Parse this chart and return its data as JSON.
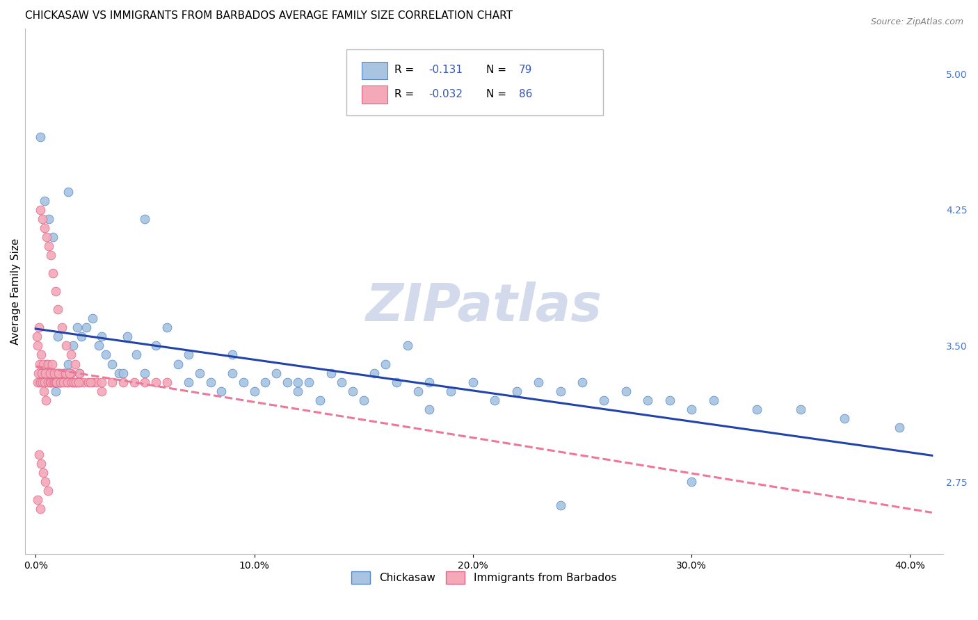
{
  "title": "CHICKASAW VS IMMIGRANTS FROM BARBADOS AVERAGE FAMILY SIZE CORRELATION CHART",
  "source": "Source: ZipAtlas.com",
  "ylabel": "Average Family Size",
  "xlabel_ticks": [
    "0.0%",
    "10.0%",
    "20.0%",
    "30.0%",
    "40.0%"
  ],
  "xlabel_vals": [
    0.0,
    10.0,
    20.0,
    30.0,
    40.0
  ],
  "ylabel_right_ticks": [
    2.75,
    3.5,
    4.25,
    5.0
  ],
  "ylim": [
    2.35,
    5.25
  ],
  "xlim": [
    -0.5,
    41.5
  ],
  "chickasaw_x": [
    0.15,
    0.3,
    0.5,
    0.7,
    0.9,
    1.1,
    1.3,
    1.5,
    1.7,
    1.9,
    2.1,
    2.3,
    2.6,
    2.9,
    3.2,
    3.5,
    3.8,
    4.2,
    4.6,
    5.0,
    5.5,
    6.0,
    6.5,
    7.0,
    7.5,
    8.0,
    8.5,
    9.0,
    9.5,
    10.0,
    10.5,
    11.0,
    11.5,
    12.0,
    12.5,
    13.0,
    13.5,
    14.0,
    14.5,
    15.0,
    15.5,
    16.0,
    16.5,
    17.0,
    17.5,
    18.0,
    19.0,
    20.0,
    21.0,
    22.0,
    23.0,
    24.0,
    25.0,
    26.0,
    27.0,
    28.0,
    29.0,
    30.0,
    31.0,
    33.0,
    35.0,
    37.0,
    39.5,
    0.2,
    0.4,
    0.6,
    0.8,
    1.0,
    1.5,
    2.0,
    3.0,
    4.0,
    5.0,
    7.0,
    9.0,
    12.0,
    18.0,
    24.0,
    30.0
  ],
  "chickasaw_y": [
    3.3,
    3.35,
    3.4,
    3.3,
    3.25,
    3.3,
    3.35,
    3.4,
    3.5,
    3.6,
    3.55,
    3.6,
    3.65,
    3.5,
    3.45,
    3.4,
    3.35,
    3.55,
    3.45,
    4.2,
    3.5,
    3.6,
    3.4,
    3.3,
    3.35,
    3.3,
    3.25,
    3.35,
    3.3,
    3.25,
    3.3,
    3.35,
    3.3,
    3.25,
    3.3,
    3.2,
    3.35,
    3.3,
    3.25,
    3.2,
    3.35,
    3.4,
    3.3,
    3.5,
    3.25,
    3.3,
    3.25,
    3.3,
    3.2,
    3.25,
    3.3,
    3.25,
    3.3,
    3.2,
    3.25,
    3.2,
    3.2,
    3.15,
    3.2,
    3.15,
    3.15,
    3.1,
    3.05,
    4.65,
    4.3,
    4.2,
    4.1,
    3.55,
    4.35,
    3.35,
    3.55,
    3.35,
    3.35,
    3.45,
    3.45,
    3.3,
    3.15,
    2.62,
    2.75
  ],
  "barbados_x": [
    0.08,
    0.12,
    0.18,
    0.22,
    0.28,
    0.32,
    0.38,
    0.42,
    0.48,
    0.55,
    0.6,
    0.65,
    0.7,
    0.75,
    0.8,
    0.85,
    0.9,
    0.95,
    1.0,
    1.05,
    1.1,
    1.15,
    1.2,
    1.3,
    1.4,
    1.5,
    1.6,
    1.7,
    1.8,
    1.9,
    2.0,
    2.2,
    2.4,
    2.6,
    2.8,
    3.0,
    3.5,
    4.0,
    4.5,
    5.0,
    5.5,
    6.0,
    0.05,
    0.1,
    0.15,
    0.25,
    0.35,
    0.45,
    0.55,
    0.65,
    0.75,
    0.85,
    0.95,
    1.05,
    1.15,
    1.25,
    1.35,
    1.45,
    1.55,
    1.65,
    1.75,
    1.85,
    1.95,
    0.2,
    0.3,
    0.4,
    0.5,
    0.6,
    0.7,
    0.8,
    0.9,
    1.0,
    1.2,
    1.4,
    1.6,
    1.8,
    2.0,
    0.15,
    0.25,
    0.35,
    0.45,
    0.55,
    2.5,
    3.0,
    0.1,
    0.2
  ],
  "barbados_y": [
    3.3,
    3.35,
    3.4,
    3.3,
    3.35,
    3.3,
    3.25,
    3.3,
    3.2,
    3.3,
    3.35,
    3.3,
    3.3,
    3.35,
    3.3,
    3.3,
    3.3,
    3.35,
    3.3,
    3.35,
    3.3,
    3.35,
    3.3,
    3.35,
    3.3,
    3.3,
    3.35,
    3.3,
    3.3,
    3.3,
    3.3,
    3.3,
    3.3,
    3.3,
    3.3,
    3.3,
    3.3,
    3.3,
    3.3,
    3.3,
    3.3,
    3.3,
    3.55,
    3.5,
    3.6,
    3.45,
    3.4,
    3.35,
    3.4,
    3.35,
    3.4,
    3.35,
    3.3,
    3.35,
    3.3,
    3.3,
    3.35,
    3.3,
    3.35,
    3.3,
    3.3,
    3.3,
    3.3,
    4.25,
    4.2,
    4.15,
    4.1,
    4.05,
    4.0,
    3.9,
    3.8,
    3.7,
    3.6,
    3.5,
    3.45,
    3.4,
    3.35,
    2.9,
    2.85,
    2.8,
    2.75,
    2.7,
    3.3,
    3.25,
    2.65,
    2.6
  ],
  "chickasaw_color": "#a8c4e0",
  "chickasaw_edge": "#5588cc",
  "chickasaw_trend": "#2244aa",
  "barbados_color": "#f4a8b8",
  "barbados_edge": "#dd6688",
  "barbados_trend": "#ee7799",
  "barbados_trend_style": "--",
  "grid_color": "#cccccc",
  "right_axis_color": "#4477cc",
  "watermark_color": "#ccd4e8",
  "title_fontsize": 11,
  "tick_fontsize": 10,
  "legend_color": "#3355bb"
}
